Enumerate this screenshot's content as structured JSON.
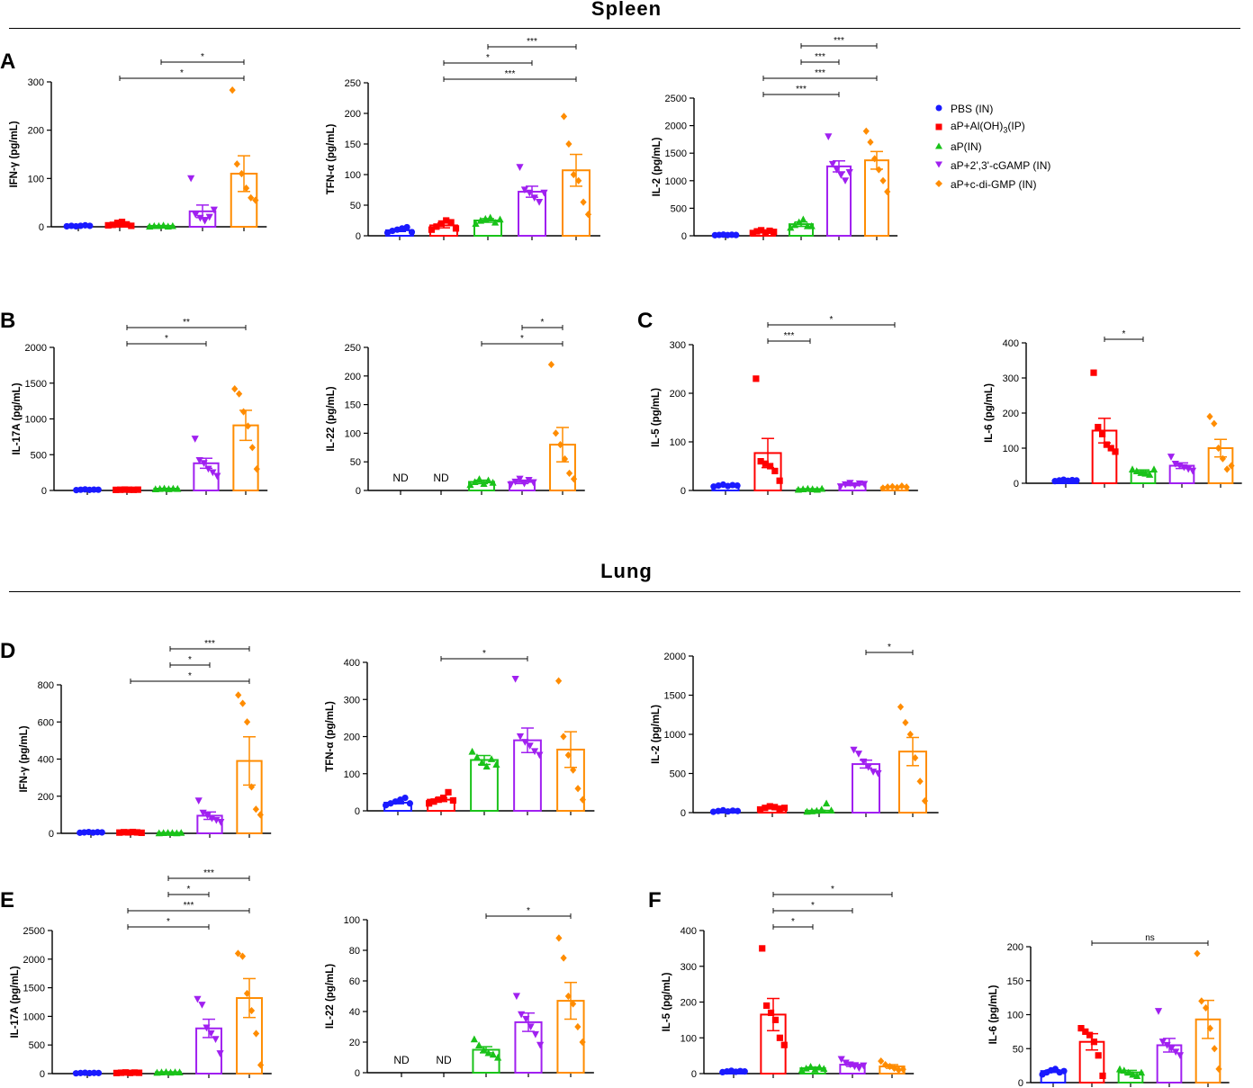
{
  "sections": [
    {
      "title": "Spleen"
    },
    {
      "title": "Lung"
    }
  ],
  "panel_letters": [
    "A",
    "B",
    "C",
    "D",
    "E",
    "F"
  ],
  "groups": [
    {
      "name": "PBS (IN)",
      "color": "#1a1aff",
      "marker": "circle"
    },
    {
      "name": "aP+Al(OH)3(IP)",
      "color": "#ff0000",
      "marker": "square"
    },
    {
      "name": "aP(IN)",
      "color": "#19c219",
      "marker": "triangle-up"
    },
    {
      "name": "aP+2',3'-cGAMP (IN)",
      "color": "#a020f0",
      "marker": "triangle-down"
    },
    {
      "name": "aP+c-di-GMP (IN)",
      "color": "#ff8c00",
      "marker": "diamond"
    }
  ],
  "legend": {
    "items": [
      {
        "label": "PBS (IN)"
      },
      {
        "label": "aP+Al(OH)",
        "sub": "3",
        "suffix": "(IP)"
      },
      {
        "label": "aP(IN)"
      },
      {
        "label": "aP+2',3'-cGAMP (IN)"
      },
      {
        "label": "aP+c-di-GMP (IN)"
      }
    ]
  },
  "chart_data": [
    {
      "type": "bar",
      "tissue": "Spleen",
      "panel": "A",
      "ylabel": "IFN-γ (pg/mL)",
      "ylim": [
        0,
        300
      ],
      "yticks": [
        0,
        100,
        200,
        300
      ],
      "categories": [
        "PBS (IN)",
        "aP+Al(OH)3(IP)",
        "aP(IN)",
        "aP+2',3'-cGAMP (IN)",
        "aP+c-di-GMP (IN)"
      ],
      "means": [
        2,
        5,
        2,
        32,
        110
      ],
      "sem": [
        0.5,
        2,
        0.5,
        13,
        37
      ],
      "points": [
        [
          1,
          2,
          1,
          2,
          3,
          2
        ],
        [
          3,
          4,
          8,
          10,
          5,
          2
        ],
        [
          1,
          2,
          2,
          3,
          1,
          2
        ],
        [
          100,
          25,
          18,
          12,
          20,
          35
        ],
        [
          283,
          130,
          110,
          80,
          60,
          55
        ]
      ],
      "sig": [
        {
          "from": 2,
          "to": 5,
          "label": "*"
        },
        {
          "from": 3,
          "to": 5,
          "label": "*"
        }
      ]
    },
    {
      "type": "bar",
      "tissue": "Spleen",
      "panel": "A",
      "ylabel": "TFN-α (pg/mL)",
      "ylim": [
        0,
        250
      ],
      "yticks": [
        0,
        50,
        100,
        150,
        200,
        250
      ],
      "categories": [
        "PBS (IN)",
        "aP+Al(OH)3(IP)",
        "aP(IN)",
        "aP+2',3'-cGAMP (IN)",
        "aP+c-di-GMP (IN)"
      ],
      "means": [
        9,
        17,
        25,
        72,
        107
      ],
      "sem": [
        2,
        4,
        3,
        9,
        26
      ],
      "points": [
        [
          5,
          8,
          10,
          12,
          14,
          6
        ],
        [
          10,
          15,
          20,
          25,
          22,
          12
        ],
        [
          20,
          25,
          28,
          30,
          22,
          27
        ],
        [
          112,
          75,
          70,
          62,
          55,
          70
        ],
        [
          195,
          150,
          100,
          90,
          55,
          35
        ]
      ],
      "sig": [
        {
          "from": 2,
          "to": 5,
          "label": "***"
        },
        {
          "from": 2,
          "to": 4,
          "label": "*"
        },
        {
          "from": 3,
          "to": 5,
          "label": "***"
        }
      ]
    },
    {
      "type": "bar",
      "tissue": "Spleen",
      "panel": "A",
      "ylabel": "IL-2 (pg/mL)",
      "ylim": [
        0,
        2500
      ],
      "yticks": [
        0,
        500,
        1000,
        1500,
        2000,
        2500
      ],
      "categories": [
        "PBS (IN)",
        "aP+Al(OH)3(IP)",
        "aP(IN)",
        "aP+2',3'-cGAMP (IN)",
        "aP+c-di-GMP (IN)"
      ],
      "means": [
        15,
        75,
        210,
        1260,
        1370
      ],
      "sem": [
        3,
        20,
        40,
        100,
        160
      ],
      "points": [
        [
          10,
          15,
          20,
          12,
          18,
          14
        ],
        [
          50,
          80,
          100,
          60,
          90,
          70
        ],
        [
          150,
          200,
          250,
          300,
          180,
          180
        ],
        [
          1800,
          1300,
          1200,
          1100,
          1000,
          1150
        ],
        [
          1900,
          1700,
          1400,
          1200,
          1000,
          800
        ]
      ],
      "sig": [
        {
          "from": 2,
          "to": 4,
          "label": "***"
        },
        {
          "from": 2,
          "to": 5,
          "label": "***"
        },
        {
          "from": 3,
          "to": 4,
          "label": "***"
        },
        {
          "from": 3,
          "to": 5,
          "label": "***"
        }
      ]
    },
    {
      "type": "bar",
      "tissue": "Spleen",
      "panel": "B",
      "ylabel": "IL-17A (pg/mL)",
      "ylim": [
        0,
        2000
      ],
      "yticks": [
        0,
        500,
        1000,
        1500,
        2000
      ],
      "categories": [
        "PBS (IN)",
        "aP+Al(OH)3(IP)",
        "aP(IN)",
        "aP+2',3'-cGAMP (IN)",
        "aP+c-di-GMP (IN)"
      ],
      "means": [
        10,
        10,
        25,
        380,
        910
      ],
      "sem": [
        3,
        3,
        5,
        70,
        210
      ],
      "points": [
        [
          5,
          10,
          15,
          8,
          12,
          10
        ],
        [
          8,
          10,
          12,
          10,
          9,
          11
        ],
        [
          20,
          25,
          30,
          22,
          28,
          25
        ],
        [
          720,
          420,
          380,
          300,
          250,
          200
        ],
        [
          1420,
          1350,
          1100,
          900,
          600,
          300
        ]
      ],
      "sig": [
        {
          "from": 2,
          "to": 4,
          "label": "*"
        },
        {
          "from": 2,
          "to": 5,
          "label": "**"
        }
      ]
    },
    {
      "type": "bar",
      "tissue": "Spleen",
      "panel": "B",
      "ylabel": "IL-22 (pg/mL)",
      "ylim": [
        0,
        250
      ],
      "yticks": [
        0,
        50,
        100,
        150,
        200,
        250
      ],
      "categories": [
        "PBS (IN)",
        "aP+Al(OH)3(IP)",
        "aP(IN)",
        "aP+2',3'-cGAMP (IN)",
        "aP+c-di-GMP (IN)"
      ],
      "means": [
        null,
        null,
        15,
        15,
        80
      ],
      "sem": [
        null,
        null,
        3,
        3,
        30
      ],
      "nd_label": "ND",
      "points": [
        [],
        [],
        [
          10,
          15,
          20,
          12,
          18,
          14
        ],
        [
          10,
          15,
          20,
          12,
          18,
          14
        ],
        [
          220,
          100,
          80,
          55,
          30,
          20
        ]
      ],
      "sig": [
        {
          "from": 3,
          "to": 5,
          "label": "*"
        },
        {
          "from": 4,
          "to": 5,
          "label": "*"
        }
      ]
    },
    {
      "type": "bar",
      "tissue": "Spleen",
      "panel": "C",
      "ylabel": "IL-5 (pg/mL)",
      "ylim": [
        0,
        300
      ],
      "yticks": [
        0,
        100,
        200,
        300
      ],
      "categories": [
        "PBS (IN)",
        "aP+Al(OH)3(IP)",
        "aP(IN)",
        "aP+2',3'-cGAMP (IN)",
        "aP+c-di-GMP (IN)"
      ],
      "means": [
        10,
        77,
        3,
        12,
        7
      ],
      "sem": [
        1,
        30,
        0.5,
        2,
        1
      ],
      "points": [
        [
          8,
          10,
          12,
          9,
          11,
          10
        ],
        [
          230,
          60,
          55,
          50,
          40,
          20
        ],
        [
          2,
          3,
          4,
          3,
          2,
          4
        ],
        [
          8,
          12,
          15,
          10,
          14,
          13
        ],
        [
          5,
          7,
          8,
          6,
          9,
          7
        ]
      ],
      "sig": [
        {
          "from": 2,
          "to": 3,
          "label": "***"
        },
        {
          "from": 2,
          "to": 5,
          "label": "*"
        }
      ]
    },
    {
      "type": "bar",
      "tissue": "Spleen",
      "panel": "C",
      "ylabel": "IL-6 (pg/mL)",
      "ylim": [
        0,
        400
      ],
      "yticks": [
        0,
        100,
        200,
        300,
        400
      ],
      "categories": [
        "PBS (IN)",
        "aP+Al(OH)3(IP)",
        "aP(IN)",
        "aP+2',3'-cGAMP (IN)",
        "aP+c-di-GMP (IN)"
      ],
      "means": [
        8,
        150,
        33,
        50,
        100
      ],
      "sem": [
        1,
        35,
        5,
        8,
        25
      ],
      "points": [
        [
          6,
          8,
          10,
          7,
          9,
          8
        ],
        [
          315,
          160,
          140,
          110,
          100,
          90
        ],
        [
          40,
          35,
          30,
          28,
          25,
          40
        ],
        [
          75,
          55,
          50,
          45,
          40,
          35
        ],
        [
          190,
          170,
          100,
          70,
          40,
          50
        ]
      ],
      "sig": [
        {
          "from": 2,
          "to": 3,
          "label": "*"
        }
      ]
    },
    {
      "type": "bar",
      "tissue": "Lung",
      "panel": "D",
      "ylabel": "IFN-γ (pg/mL)",
      "ylim": [
        0,
        800
      ],
      "yticks": [
        0,
        200,
        400,
        600,
        800
      ],
      "categories": [
        "PBS (IN)",
        "aP+Al(OH)3(IP)",
        "aP(IN)",
        "aP+2',3'-cGAMP (IN)",
        "aP+c-di-GMP (IN)"
      ],
      "means": [
        5,
        5,
        3,
        95,
        390
      ],
      "sem": [
        1,
        1,
        0.5,
        20,
        130
      ],
      "points": [
        [
          3,
          5,
          7,
          4,
          6,
          5
        ],
        [
          4,
          6,
          5,
          7,
          5,
          3
        ],
        [
          2,
          3,
          4,
          3,
          2,
          4
        ],
        [
          175,
          110,
          95,
          80,
          70,
          60
        ],
        [
          745,
          700,
          600,
          250,
          130,
          100
        ]
      ],
      "sig": [
        {
          "from": 2,
          "to": 5,
          "label": "*"
        },
        {
          "from": 3,
          "to": 4,
          "label": "*"
        },
        {
          "from": 3,
          "to": 5,
          "label": "***"
        }
      ]
    },
    {
      "type": "bar",
      "tissue": "Lung",
      "panel": "D",
      "ylabel": "TFN-α (pg/mL)",
      "ylim": [
        0,
        400
      ],
      "yticks": [
        0,
        100,
        200,
        300,
        400
      ],
      "categories": [
        "PBS (IN)",
        "aP+Al(OH)3(IP)",
        "aP(IN)",
        "aP+2',3'-cGAMP (IN)",
        "aP+c-di-GMP (IN)"
      ],
      "means": [
        22,
        30,
        137,
        190,
        165
      ],
      "sem": [
        3,
        5,
        12,
        33,
        48
      ],
      "points": [
        [
          15,
          20,
          25,
          30,
          35,
          20
        ],
        [
          20,
          25,
          30,
          35,
          50,
          28
        ],
        [
          160,
          145,
          130,
          120,
          140,
          125
        ],
        [
          355,
          200,
          185,
          175,
          160,
          150
        ],
        [
          350,
          200,
          150,
          110,
          60,
          30
        ]
      ],
      "sig": [
        {
          "from": 2,
          "to": 4,
          "label": "*"
        }
      ]
    },
    {
      "type": "bar",
      "tissue": "Lung",
      "panel": "D",
      "ylabel": "IL-2 (pg/mL)",
      "ylim": [
        0,
        2000
      ],
      "yticks": [
        0,
        500,
        1000,
        1500,
        2000
      ],
      "categories": [
        "PBS (IN)",
        "aP+Al(OH)3(IP)",
        "aP(IN)",
        "aP+2',3'-cGAMP (IN)",
        "aP+c-di-GMP (IN)"
      ],
      "means": [
        20,
        60,
        25,
        620,
        780
      ],
      "sem": [
        5,
        10,
        5,
        50,
        180
      ],
      "points": [
        [
          10,
          20,
          30,
          15,
          25,
          20
        ],
        [
          40,
          60,
          80,
          70,
          50,
          60
        ],
        [
          15,
          20,
          25,
          40,
          120,
          30
        ],
        [
          800,
          750,
          650,
          580,
          520,
          500
        ],
        [
          1350,
          1150,
          1000,
          700,
          400,
          150
        ]
      ],
      "sig": [
        {
          "from": 4,
          "to": 5,
          "label": "*"
        }
      ]
    },
    {
      "type": "bar",
      "tissue": "Lung",
      "panel": "E",
      "ylabel": "IL-17A (pg/mL)",
      "ylim": [
        0,
        2500
      ],
      "yticks": [
        0,
        500,
        1000,
        1500,
        2000,
        2500
      ],
      "categories": [
        "PBS (IN)",
        "aP+Al(OH)3(IP)",
        "aP(IN)",
        "aP+2',3'-cGAMP (IN)",
        "aP+c-di-GMP (IN)"
      ],
      "means": [
        10,
        15,
        25,
        790,
        1320
      ],
      "sem": [
        2,
        3,
        5,
        160,
        340
      ],
      "points": [
        [
          5,
          10,
          15,
          8,
          12,
          10
        ],
        [
          10,
          15,
          20,
          12,
          18,
          14
        ],
        [
          20,
          25,
          30,
          22,
          28,
          25
        ],
        [
          1300,
          1200,
          800,
          700,
          600,
          350
        ],
        [
          2100,
          2050,
          1400,
          1100,
          700,
          150
        ]
      ],
      "sig": [
        {
          "from": 2,
          "to": 4,
          "label": "*"
        },
        {
          "from": 2,
          "to": 5,
          "label": "***"
        },
        {
          "from": 3,
          "to": 4,
          "label": "*"
        },
        {
          "from": 3,
          "to": 5,
          "label": "***"
        }
      ]
    },
    {
      "type": "bar",
      "tissue": "Lung",
      "panel": "E",
      "ylabel": "IL-22 (pg/mL)",
      "ylim": [
        0,
        100
      ],
      "yticks": [
        0,
        20,
        40,
        60,
        80,
        100
      ],
      "categories": [
        "PBS (IN)",
        "aP+Al(OH)3(IP)",
        "aP(IN)",
        "aP+2',3'-cGAMP (IN)",
        "aP+c-di-GMP (IN)"
      ],
      "means": [
        null,
        null,
        15,
        33,
        47
      ],
      "sem": [
        null,
        null,
        2,
        6,
        12
      ],
      "nd_label": "ND",
      "points": [
        [],
        [],
        [
          22,
          18,
          15,
          13,
          12,
          10
        ],
        [
          50,
          38,
          35,
          30,
          25,
          18
        ],
        [
          88,
          75,
          50,
          45,
          30,
          20
        ]
      ],
      "sig": [
        {
          "from": 3,
          "to": 5,
          "label": "*"
        }
      ]
    },
    {
      "type": "bar",
      "tissue": "Lung",
      "panel": "F",
      "ylabel": "IL-5 (pg/mL)",
      "ylim": [
        0,
        400
      ],
      "yticks": [
        0,
        100,
        200,
        300,
        400
      ],
      "categories": [
        "PBS (IN)",
        "aP+Al(OH)3(IP)",
        "aP(IN)",
        "aP+2',3'-cGAMP (IN)",
        "aP+c-di-GMP (IN)"
      ],
      "means": [
        6,
        165,
        15,
        25,
        20
      ],
      "sem": [
        1,
        45,
        3,
        5,
        5
      ],
      "points": [
        [
          4,
          6,
          8,
          5,
          7,
          6
        ],
        [
          350,
          190,
          170,
          150,
          100,
          80
        ],
        [
          10,
          15,
          20,
          12,
          18,
          14
        ],
        [
          40,
          30,
          25,
          20,
          15,
          22
        ],
        [
          35,
          25,
          20,
          15,
          10,
          12
        ]
      ],
      "sig": [
        {
          "from": 2,
          "to": 3,
          "label": "*"
        },
        {
          "from": 2,
          "to": 4,
          "label": "*"
        },
        {
          "from": 2,
          "to": 5,
          "label": "*"
        }
      ]
    },
    {
      "type": "bar",
      "tissue": "Lung",
      "panel": "F",
      "ylabel": "IL-6 (pg/mL)",
      "ylim": [
        0,
        200
      ],
      "yticks": [
        0,
        50,
        100,
        150,
        200
      ],
      "categories": [
        "PBS (IN)",
        "aP+Al(OH)3(IP)",
        "aP(IN)",
        "aP+2',3'-cGAMP (IN)",
        "aP+c-di-GMP (IN)"
      ],
      "means": [
        17,
        60,
        15,
        55,
        93
      ],
      "sem": [
        2,
        12,
        3,
        10,
        28
      ],
      "points": [
        [
          12,
          15,
          18,
          20,
          15,
          17
        ],
        [
          80,
          75,
          70,
          60,
          40,
          10
        ],
        [
          20,
          18,
          15,
          12,
          10,
          15
        ],
        [
          105,
          60,
          55,
          50,
          45,
          40
        ],
        [
          190,
          120,
          110,
          80,
          50,
          20
        ]
      ],
      "sig": [
        {
          "from": 2,
          "to": 5,
          "label": "ns"
        }
      ]
    }
  ]
}
